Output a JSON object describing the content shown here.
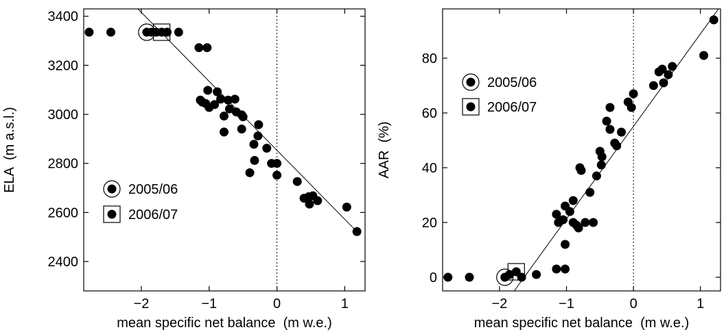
{
  "chart_data": [
    {
      "type": "scatter",
      "xlabel": "mean specific net balance  (m w.e.)",
      "ylabel": "ELA  (m a.s.l.)",
      "xlim": [
        -2.85,
        1.3
      ],
      "ylim": [
        2280,
        3430
      ],
      "xticks": [
        -2,
        -1,
        0,
        1
      ],
      "xtick_labels": [
        "−2",
        "−1",
        "0",
        "1"
      ],
      "yticks": [
        2400,
        2600,
        2800,
        3000,
        3200,
        3400
      ],
      "ytick_labels": [
        "2400",
        "2600",
        "2800",
        "3000",
        "3200",
        "3400"
      ],
      "points": [
        {
          "x": -2.77,
          "y": 3335
        },
        {
          "x": -2.45,
          "y": 3335
        },
        {
          "x": -1.92,
          "y": 3335
        },
        {
          "x": -1.85,
          "y": 3335
        },
        {
          "x": -1.78,
          "y": 3335
        },
        {
          "x": -1.7,
          "y": 3335
        },
        {
          "x": -1.62,
          "y": 3335
        },
        {
          "x": -1.45,
          "y": 3335
        },
        {
          "x": -1.15,
          "y": 3272
        },
        {
          "x": -1.03,
          "y": 3272
        },
        {
          "x": -1.13,
          "y": 3058
        },
        {
          "x": -1.1,
          "y": 3050
        },
        {
          "x": -1.05,
          "y": 3044
        },
        {
          "x": -1.02,
          "y": 3098
        },
        {
          "x": -1.0,
          "y": 3028
        },
        {
          "x": -0.92,
          "y": 3040
        },
        {
          "x": -0.88,
          "y": 3092
        },
        {
          "x": -0.83,
          "y": 3062
        },
        {
          "x": -0.78,
          "y": 2993
        },
        {
          "x": -0.78,
          "y": 2928
        },
        {
          "x": -0.72,
          "y": 3058
        },
        {
          "x": -0.7,
          "y": 3022
        },
        {
          "x": -0.62,
          "y": 3062
        },
        {
          "x": -0.6,
          "y": 3010
        },
        {
          "x": -0.52,
          "y": 2998
        },
        {
          "x": -0.5,
          "y": 2990
        },
        {
          "x": -0.52,
          "y": 2940
        },
        {
          "x": -0.4,
          "y": 2762
        },
        {
          "x": -0.34,
          "y": 2878
        },
        {
          "x": -0.33,
          "y": 2812
        },
        {
          "x": -0.28,
          "y": 2912
        },
        {
          "x": -0.27,
          "y": 2958
        },
        {
          "x": -0.15,
          "y": 2862
        },
        {
          "x": -0.08,
          "y": 2800
        },
        {
          "x": 0.0,
          "y": 2800
        },
        {
          "x": 0.0,
          "y": 2752
        },
        {
          "x": 0.3,
          "y": 2726
        },
        {
          "x": 0.4,
          "y": 2658
        },
        {
          "x": 0.47,
          "y": 2664
        },
        {
          "x": 0.48,
          "y": 2634
        },
        {
          "x": 0.53,
          "y": 2668
        },
        {
          "x": 0.6,
          "y": 2648
        },
        {
          "x": 1.03,
          "y": 2622
        },
        {
          "x": 1.18,
          "y": 2522
        }
      ],
      "fit_line": [
        [
          -2.05,
          3430
        ],
        [
          1.2,
          2516
        ]
      ],
      "zero_line_x": 0,
      "highlight": {
        "circle": {
          "x": -1.92,
          "y": 3335
        },
        "square": {
          "x": -1.7,
          "y": 3335
        }
      },
      "legend": {
        "placement": "lower-left",
        "entries": [
          {
            "marker": "circle",
            "label": "2005/06"
          },
          {
            "marker": "square",
            "label": "2006/07"
          }
        ]
      }
    },
    {
      "type": "scatter",
      "xlabel": "mean specific net balance  (m w.e.)",
      "ylabel": "AAR  (%)",
      "xlim": [
        -2.85,
        1.3
      ],
      "ylim": [
        -5,
        98
      ],
      "xticks": [
        -2,
        -1,
        0,
        1
      ],
      "xtick_labels": [
        "−2",
        "−1",
        "0",
        "1"
      ],
      "yticks": [
        0,
        20,
        40,
        60,
        80
      ],
      "ytick_labels": [
        "0",
        "20",
        "40",
        "60",
        "80"
      ],
      "points": [
        {
          "x": -2.77,
          "y": 0
        },
        {
          "x": -2.45,
          "y": 0
        },
        {
          "x": -1.92,
          "y": 0
        },
        {
          "x": -1.85,
          "y": 1
        },
        {
          "x": -1.75,
          "y": 2
        },
        {
          "x": -1.67,
          "y": 0
        },
        {
          "x": -1.45,
          "y": 1
        },
        {
          "x": -1.15,
          "y": 3
        },
        {
          "x": -1.02,
          "y": 3
        },
        {
          "x": -1.15,
          "y": 23
        },
        {
          "x": -1.12,
          "y": 20
        },
        {
          "x": -1.05,
          "y": 21
        },
        {
          "x": -1.02,
          "y": 26
        },
        {
          "x": -1.02,
          "y": 12
        },
        {
          "x": -0.95,
          "y": 24
        },
        {
          "x": -0.9,
          "y": 28
        },
        {
          "x": -0.9,
          "y": 20
        },
        {
          "x": -0.85,
          "y": 19
        },
        {
          "x": -0.82,
          "y": 18
        },
        {
          "x": -0.8,
          "y": 40
        },
        {
          "x": -0.78,
          "y": 39
        },
        {
          "x": -0.72,
          "y": 20
        },
        {
          "x": -0.65,
          "y": 31
        },
        {
          "x": -0.6,
          "y": 20
        },
        {
          "x": -0.55,
          "y": 37
        },
        {
          "x": -0.5,
          "y": 46
        },
        {
          "x": -0.48,
          "y": 41
        },
        {
          "x": -0.47,
          "y": 44
        },
        {
          "x": -0.4,
          "y": 57
        },
        {
          "x": -0.35,
          "y": 62
        },
        {
          "x": -0.35,
          "y": 54
        },
        {
          "x": -0.28,
          "y": 49
        },
        {
          "x": -0.25,
          "y": 48
        },
        {
          "x": -0.18,
          "y": 53
        },
        {
          "x": -0.08,
          "y": 64
        },
        {
          "x": -0.03,
          "y": 62
        },
        {
          "x": 0.0,
          "y": 67
        },
        {
          "x": 0.3,
          "y": 70
        },
        {
          "x": 0.38,
          "y": 75
        },
        {
          "x": 0.43,
          "y": 76
        },
        {
          "x": 0.45,
          "y": 71
        },
        {
          "x": 0.52,
          "y": 74
        },
        {
          "x": 0.58,
          "y": 77
        },
        {
          "x": 1.05,
          "y": 81
        },
        {
          "x": 1.2,
          "y": 94
        }
      ],
      "fit_line": [
        [
          -1.78,
          -5
        ],
        [
          1.27,
          98
        ]
      ],
      "zero_line_x": 0,
      "highlight": {
        "circle": {
          "x": -1.92,
          "y": 0
        },
        "square": {
          "x": -1.75,
          "y": 2
        }
      },
      "legend": {
        "placement": "upper-left",
        "entries": [
          {
            "marker": "circle",
            "label": "2005/06"
          },
          {
            "marker": "square",
            "label": "2006/07"
          }
        ]
      }
    }
  ]
}
